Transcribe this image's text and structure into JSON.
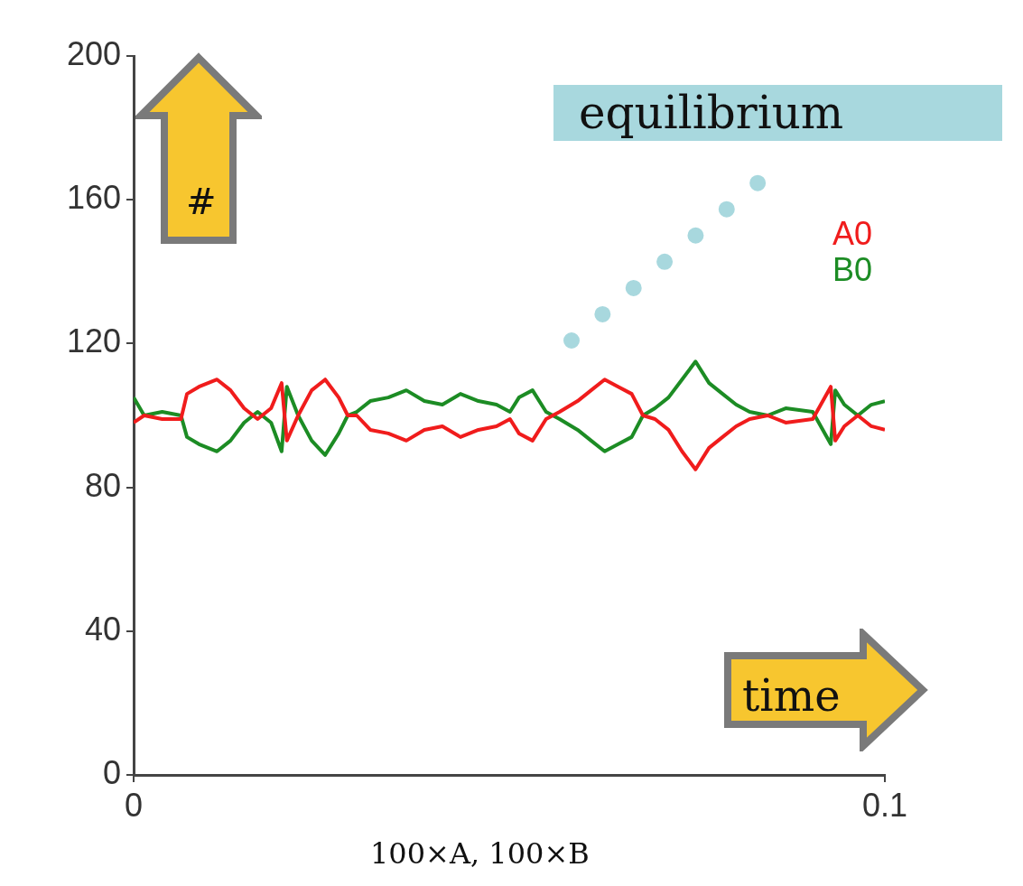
{
  "chart_data": {
    "type": "line",
    "xlabel": "time",
    "ylabel": "#",
    "annotations": [
      "equilibrium",
      "100×A, 100×B"
    ],
    "xlim": [
      0,
      0.1
    ],
    "xticks": [
      0,
      0.1
    ],
    "ylim": [
      0,
      200
    ],
    "yticks": [
      0,
      40,
      80,
      120,
      160,
      200
    ],
    "grid": false,
    "legend": "right",
    "marker": "none",
    "line_style": "solid",
    "series": [
      {
        "name": "A0",
        "color": "#f01c1c",
        "x": [
          0,
          0.0014,
          0.0038,
          0.0063,
          0.0071,
          0.0087,
          0.0111,
          0.0129,
          0.0147,
          0.0165,
          0.0183,
          0.0197,
          0.0204,
          0.0219,
          0.0237,
          0.0255,
          0.0273,
          0.0285,
          0.0297,
          0.0315,
          0.0339,
          0.0363,
          0.0387,
          0.0411,
          0.0435,
          0.0459,
          0.0483,
          0.0501,
          0.0513,
          0.0531,
          0.0549,
          0.0567,
          0.0591,
          0.0609,
          0.0627,
          0.0645,
          0.0663,
          0.0678,
          0.0694,
          0.0712,
          0.073,
          0.0748,
          0.0766,
          0.0784,
          0.0802,
          0.082,
          0.0844,
          0.0868,
          0.0904,
          0.0928,
          0.0934,
          0.0946,
          0.0964,
          0.0982,
          0.1
        ],
        "values": [
          98,
          100,
          99,
          99,
          106,
          108,
          110,
          107,
          102,
          99,
          102,
          109,
          93,
          100,
          107,
          110,
          105,
          100,
          100,
          96,
          95,
          93,
          96,
          97,
          94,
          96,
          97,
          99,
          95,
          93,
          99,
          101,
          104,
          107,
          110,
          108,
          106,
          100,
          99,
          96,
          90,
          85,
          91,
          94,
          97,
          99,
          100,
          98,
          99,
          108,
          93,
          97,
          100,
          97,
          96
        ]
      },
      {
        "name": "B0",
        "color": "#1c8c24",
        "x": [
          0,
          0.0014,
          0.0038,
          0.0063,
          0.0071,
          0.0087,
          0.0111,
          0.0129,
          0.0147,
          0.0165,
          0.0183,
          0.0197,
          0.0204,
          0.0219,
          0.0237,
          0.0255,
          0.0273,
          0.0285,
          0.0297,
          0.0315,
          0.0339,
          0.0363,
          0.0387,
          0.0411,
          0.0435,
          0.0459,
          0.0483,
          0.0501,
          0.0513,
          0.0531,
          0.0549,
          0.0567,
          0.0591,
          0.0609,
          0.0627,
          0.0645,
          0.0663,
          0.0678,
          0.0694,
          0.0712,
          0.073,
          0.0748,
          0.0766,
          0.0784,
          0.0802,
          0.082,
          0.0844,
          0.0868,
          0.0904,
          0.0928,
          0.0934,
          0.0946,
          0.0964,
          0.0982,
          0.1
        ],
        "values": [
          105,
          100,
          101,
          100,
          94,
          92,
          90,
          93,
          98,
          101,
          98,
          90,
          108,
          100,
          93,
          89,
          95,
          100,
          101,
          104,
          105,
          107,
          104,
          103,
          106,
          104,
          103,
          101,
          105,
          107,
          101,
          99,
          96,
          93,
          90,
          92,
          94,
          100,
          102,
          105,
          110,
          115,
          109,
          106,
          103,
          101,
          100,
          102,
          101,
          92,
          107,
          103,
          100,
          103,
          104
        ]
      }
    ]
  }
}
